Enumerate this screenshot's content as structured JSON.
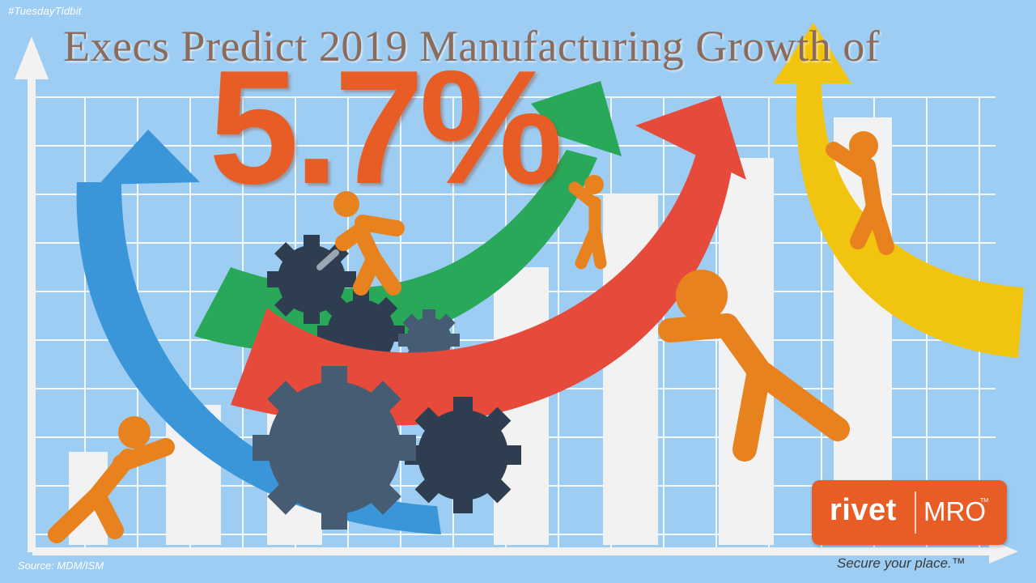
{
  "hashtag": "#TuesdayTidbit",
  "title": "Execs Predict 2019 Manufacturing Growth of",
  "headline_number": "5.7%",
  "source": "Source: MDM/ISM",
  "logo": {
    "rivet": "rivet",
    "mro": "MRO",
    "tm": "TM"
  },
  "tagline": "Secure your place.™",
  "colors": {
    "background": "#9ecdf3",
    "grid": "#ffffff",
    "bars": "#f2f2f2",
    "accent_orange": "#e85d25",
    "figure_orange": "#e8821f",
    "arrow_blue": "#3a96d8",
    "arrow_green": "#2aa85a",
    "arrow_red": "#e64a3a",
    "arrow_yellow": "#f1c40f",
    "gear_dark": "#2e3e50",
    "gear_mid": "#455c72"
  }
}
